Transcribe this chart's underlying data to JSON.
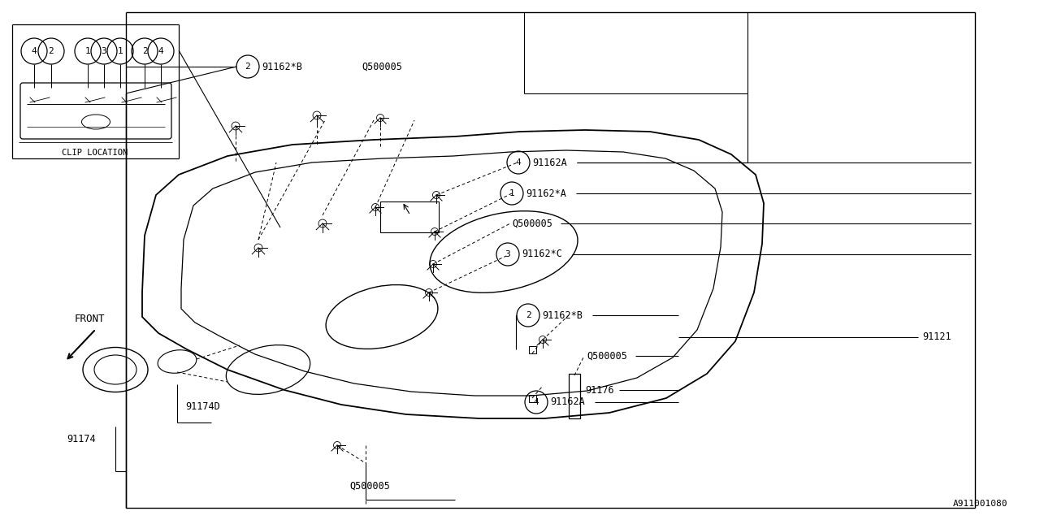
{
  "bg_color": "#ffffff",
  "line_color": "#000000",
  "text_color": "#000000",
  "fig_width": 12.8,
  "fig_height": 6.4,
  "diagram_id": "A911001080",
  "clip_location_text": "CLIP LOCATION",
  "front_text": "FRONT"
}
